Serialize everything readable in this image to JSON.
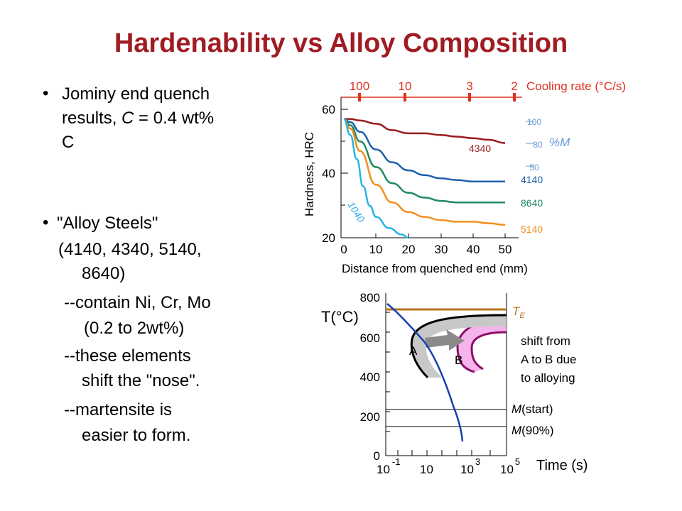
{
  "title": "Hardenability vs Alloy Composition",
  "bullets": [
    {
      "lines": [
        "Jominy end quench",
        "results, C = 0.4 wt%",
        "C"
      ]
    },
    {
      "lines": [
        "\"Alloy Steels\"",
        "(4140, 4340, 5140,",
        "8640)",
        "--contain Ni, Cr, Mo",
        "(0.2 to 2wt%)",
        "--these elements",
        "shift the \"nose\".",
        "--martensite is",
        "easier to form."
      ]
    }
  ],
  "jominy": {
    "ylabel": "Hardness, HRC",
    "xlabel": "Distance from quenched end (mm)",
    "xticks": [
      "0",
      "10",
      "20",
      "30",
      "40",
      "50"
    ],
    "yticks": [
      "20",
      "40",
      "60"
    ],
    "cooling_rate_label": "Cooling rate (°C/s)",
    "cooling_rates": [
      "100",
      "10",
      "3",
      "2"
    ],
    "martensite_ticks": [
      "100",
      "80",
      "50"
    ],
    "martensite_label": "%M",
    "colors": {
      "c4340": "#9b1c1c",
      "c4140": "#1f5fae",
      "c8640": "#1f8a5f",
      "c5140": "#f0901e",
      "c1040": "#29b3e6",
      "red": "#e0301e",
      "pct": "#6a9ad6"
    }
  },
  "chart_data": {
    "type": "line",
    "xlabel": "Distance from quenched end (mm)",
    "ylabel": "Hardness, HRC",
    "xlim": [
      0,
      50
    ],
    "ylim": [
      20,
      60
    ],
    "series": [
      {
        "name": "4340",
        "x": [
          0,
          2,
          5,
          10,
          15,
          20,
          25,
          30,
          35,
          40,
          45,
          50
        ],
        "y": [
          57,
          57,
          56.5,
          55.5,
          53.5,
          52.5,
          52.5,
          52,
          51.5,
          51,
          50.5,
          49.5
        ]
      },
      {
        "name": "4140",
        "x": [
          0,
          2,
          5,
          10,
          15,
          20,
          25,
          30,
          35,
          40,
          45,
          50
        ],
        "y": [
          57,
          56,
          53,
          47.5,
          43.5,
          41,
          39.5,
          38.5,
          38,
          37.5,
          37.5,
          37.5
        ]
      },
      {
        "name": "8640",
        "x": [
          0,
          2,
          5,
          10,
          15,
          20,
          25,
          30,
          35,
          40,
          45,
          50
        ],
        "y": [
          57,
          55,
          50,
          42,
          37,
          34,
          32.5,
          31.5,
          31,
          31,
          31,
          31
        ]
      },
      {
        "name": "5140",
        "x": [
          0,
          2,
          5,
          10,
          15,
          20,
          25,
          30,
          35,
          40,
          45,
          50
        ],
        "y": [
          57,
          54,
          47,
          36.5,
          31,
          28,
          26.5,
          25.5,
          25,
          25,
          24.5,
          24
        ]
      },
      {
        "name": "1040",
        "x": [
          0,
          2,
          4,
          6,
          8,
          10,
          14,
          18,
          20
        ],
        "y": [
          57,
          52,
          44.5,
          36,
          30,
          26.5,
          23,
          21,
          20
        ]
      }
    ]
  },
  "ttt": {
    "ylabel": "T(°C)",
    "yticks": [
      "800",
      "600",
      "400",
      "200",
      "0"
    ],
    "xtick_bases": [
      "10",
      "10",
      "10",
      "10"
    ],
    "xtick_exps": [
      "-1",
      "",
      "3",
      "5"
    ],
    "xlabel": "Time (s)",
    "te_label": "TE",
    "te_main": "T",
    "te_sub": "E",
    "ms_italic": "M",
    "ms_suffix": "(start)",
    "m90_italic": "M",
    "m90_suffix": "(90%)",
    "label_a": "A",
    "label_b": "B",
    "shift_text": [
      "shift from",
      "A to B due",
      "to alloying"
    ],
    "colors": {
      "te": "#b8731f",
      "nose_a": "#c8c8c8",
      "nose_b": "#f6b4ec",
      "nose_b_edge": "#8e0f6a",
      "cooling": "#1740b0",
      "arrow": "#8a8a8a"
    }
  }
}
